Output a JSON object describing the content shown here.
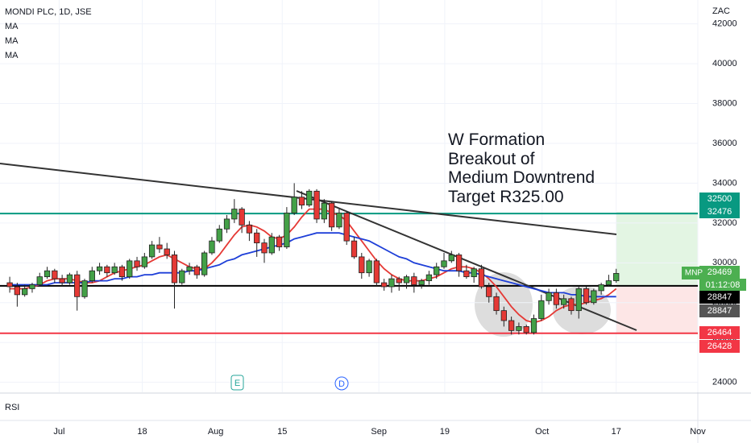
{
  "chart_data": {
    "type": "candlestick",
    "title": "MONDI PLC, 1D, JSE",
    "legend": [
      "MA",
      "MA",
      "MA"
    ],
    "currency": "ZAC",
    "pane_label": "RSI",
    "symbol": "MNP",
    "countdown": "01:12:08",
    "events": [
      "E",
      "D"
    ],
    "annotation": [
      "W Formation",
      "Breakout of",
      "Medium Downtrend",
      "Target R325.00"
    ],
    "ylim": [
      23500,
      43200
    ],
    "yticks": [
      24000,
      26000,
      28000,
      30000,
      32000,
      34000,
      36000,
      38000,
      40000,
      42000
    ],
    "xlim": [
      -1.3,
      91.9
    ],
    "xticks": [
      {
        "value": 6.6,
        "label": "Jul"
      },
      {
        "value": 17.7,
        "label": "18"
      },
      {
        "value": 27.5,
        "label": "Aug"
      },
      {
        "value": 36.4,
        "label": "15"
      },
      {
        "value": 49.3,
        "label": "Sep"
      },
      {
        "value": 58.1,
        "label": "19"
      },
      {
        "value": 71.1,
        "label": "Oct"
      },
      {
        "value": 81,
        "label": "17"
      },
      {
        "value": 91.9,
        "label": "Nov"
      }
    ],
    "open": [
      29000,
      28800,
      28400,
      28700,
      28900,
      29300,
      29600,
      29200,
      29000,
      29400,
      28300,
      29100,
      29600,
      29800,
      29500,
      29800,
      29300,
      30100,
      29800,
      30300,
      30900,
      30700,
      30400,
      29000,
      29600,
      29800,
      29400,
      30500,
      31100,
      31700,
      32200,
      32700,
      31900,
      31500,
      31000,
      30500,
      31300,
      30800,
      32500,
      33300,
      32900,
      33600,
      32200,
      33000,
      31800,
      32500,
      31100,
      30300,
      29500,
      30100,
      29000,
      28800,
      29200,
      29000,
      29300,
      28900,
      29100,
      29400,
      29800,
      30100,
      30400,
      29600,
      29300,
      29700,
      28800,
      28300,
      27600,
      27100,
      26600,
      26800,
      26500,
      27200,
      28100,
      28500,
      27900,
      28200,
      27600,
      28700,
      28000,
      28600,
      28900,
      29100
    ],
    "high": [
      29300,
      29000,
      28900,
      29000,
      29500,
      29800,
      29700,
      29400,
      29500,
      29600,
      29200,
      29800,
      30000,
      29900,
      30000,
      29900,
      30200,
      30300,
      30500,
      31100,
      31300,
      31000,
      30600,
      29700,
      30000,
      29900,
      30600,
      31300,
      31900,
      32400,
      33200,
      32800,
      32100,
      31700,
      31200,
      31500,
      31400,
      32800,
      34000,
      33600,
      33700,
      33700,
      33200,
      33100,
      32700,
      32600,
      31300,
      30500,
      30200,
      30200,
      29200,
      29400,
      29300,
      29400,
      29500,
      29200,
      29600,
      30000,
      30500,
      30600,
      30500,
      29900,
      29800,
      29900,
      29000,
      28500,
      27800,
      27300,
      27000,
      26900,
      27400,
      28400,
      28700,
      28700,
      28400,
      28300,
      28800,
      28800,
      28700,
      29000,
      29400,
      29700
    ],
    "low": [
      28500,
      27800,
      28300,
      28500,
      28800,
      29200,
      29000,
      28800,
      28900,
      27600,
      28200,
      29000,
      29400,
      29300,
      29400,
      29100,
      29200,
      29600,
      29700,
      30200,
      30500,
      30200,
      27700,
      28900,
      29400,
      29200,
      29300,
      30400,
      31000,
      31500,
      32000,
      31500,
      31100,
      30300,
      30000,
      30400,
      30600,
      30700,
      32400,
      32700,
      32800,
      32000,
      32000,
      31600,
      31700,
      30900,
      30200,
      29200,
      29300,
      28800,
      28600,
      28500,
      28600,
      28700,
      28500,
      28700,
      28900,
      29200,
      29700,
      30000,
      29300,
      29200,
      29000,
      28700,
      28000,
      27400,
      26800,
      26400,
      26400,
      26400,
      26400,
      27100,
      27900,
      27700,
      27700,
      27400,
      27200,
      27900,
      27900,
      28400,
      28800,
      29000
    ],
    "close": [
      28800,
      28400,
      28700,
      28900,
      29300,
      29600,
      29200,
      29000,
      29400,
      28300,
      29100,
      29600,
      29800,
      29500,
      29800,
      29300,
      30100,
      29800,
      30300,
      30900,
      30700,
      30400,
      29000,
      29600,
      29800,
      29400,
      30500,
      31100,
      31700,
      32200,
      32700,
      31900,
      31500,
      31000,
      30500,
      31300,
      30800,
      32500,
      33300,
      32900,
      33600,
      32200,
      33000,
      31800,
      32500,
      31100,
      30300,
      29500,
      30100,
      29000,
      28800,
      29200,
      29000,
      29300,
      28900,
      29100,
      29400,
      29800,
      30100,
      30400,
      29600,
      29300,
      29700,
      28800,
      28300,
      27600,
      27100,
      26600,
      26800,
      26500,
      27200,
      28100,
      28500,
      27900,
      28200,
      27600,
      28700,
      28000,
      28600,
      28900,
      29100,
      29469
    ],
    "up_color": "#43a047",
    "down_color": "#e53935",
    "ma": [
      {
        "color": "#e53935",
        "values": [
          28700,
          28700,
          28700,
          28800,
          28900,
          29100,
          29200,
          29200,
          29200,
          29100,
          29000,
          29000,
          29100,
          29300,
          29500,
          29600,
          29700,
          29800,
          29900,
          30100,
          30300,
          30400,
          30200,
          30000,
          29800,
          29700,
          29700,
          30000,
          30400,
          30900,
          31400,
          31800,
          31900,
          31800,
          31600,
          31300,
          31200,
          31400,
          31800,
          32300,
          32700,
          32700,
          32700,
          32500,
          32400,
          32100,
          31600,
          31100,
          30600,
          30100,
          29700,
          29400,
          29200,
          29100,
          29100,
          29100,
          29200,
          29300,
          29500,
          29700,
          29800,
          29800,
          29700,
          29500,
          29200,
          28800,
          28300,
          27800,
          27400,
          27100,
          27000,
          27100,
          27300,
          27600,
          27800,
          27900,
          27900,
          28000,
          28100,
          28200,
          28400,
          28700
        ]
      },
      {
        "color": "#1e3fd8",
        "values": [
          28900,
          28900,
          28900,
          28900,
          28900,
          28900,
          29000,
          29000,
          29000,
          29000,
          29000,
          29100,
          29100,
          29100,
          29200,
          29200,
          29300,
          29300,
          29400,
          29400,
          29500,
          29500,
          29500,
          29500,
          29600,
          29600,
          29700,
          29800,
          29900,
          30100,
          30200,
          30400,
          30500,
          30600,
          30700,
          30800,
          30900,
          31000,
          31200,
          31300,
          31400,
          31500,
          31500,
          31500,
          31500,
          31400,
          31300,
          31200,
          31100,
          30900,
          30700,
          30500,
          30300,
          30200,
          30000,
          29900,
          29800,
          29700,
          29600,
          29600,
          29600,
          29500,
          29500,
          29400,
          29300,
          29200,
          29100,
          29000,
          28900,
          28800,
          28700,
          28600,
          28500,
          28500,
          28500,
          28400,
          28400,
          28300,
          28300,
          28300,
          28300,
          28300
        ]
      }
    ],
    "levels": [
      {
        "value": 32476,
        "color": "#089981"
      },
      {
        "value": 28847,
        "color": "#000000"
      },
      {
        "value": 26464,
        "color": "#f23645"
      }
    ],
    "price_labels": [
      {
        "value": 32500,
        "color": "#089981"
      },
      {
        "value": 32476,
        "color": "#089981"
      },
      {
        "value": 29469,
        "color": "#4caf50"
      },
      {
        "value": 28847,
        "color": "#000000"
      },
      {
        "value": 28847,
        "color": "#555555"
      },
      {
        "value": 26464,
        "color": "#f23645"
      },
      {
        "value": 26428,
        "color": "#f23645"
      }
    ]
  }
}
